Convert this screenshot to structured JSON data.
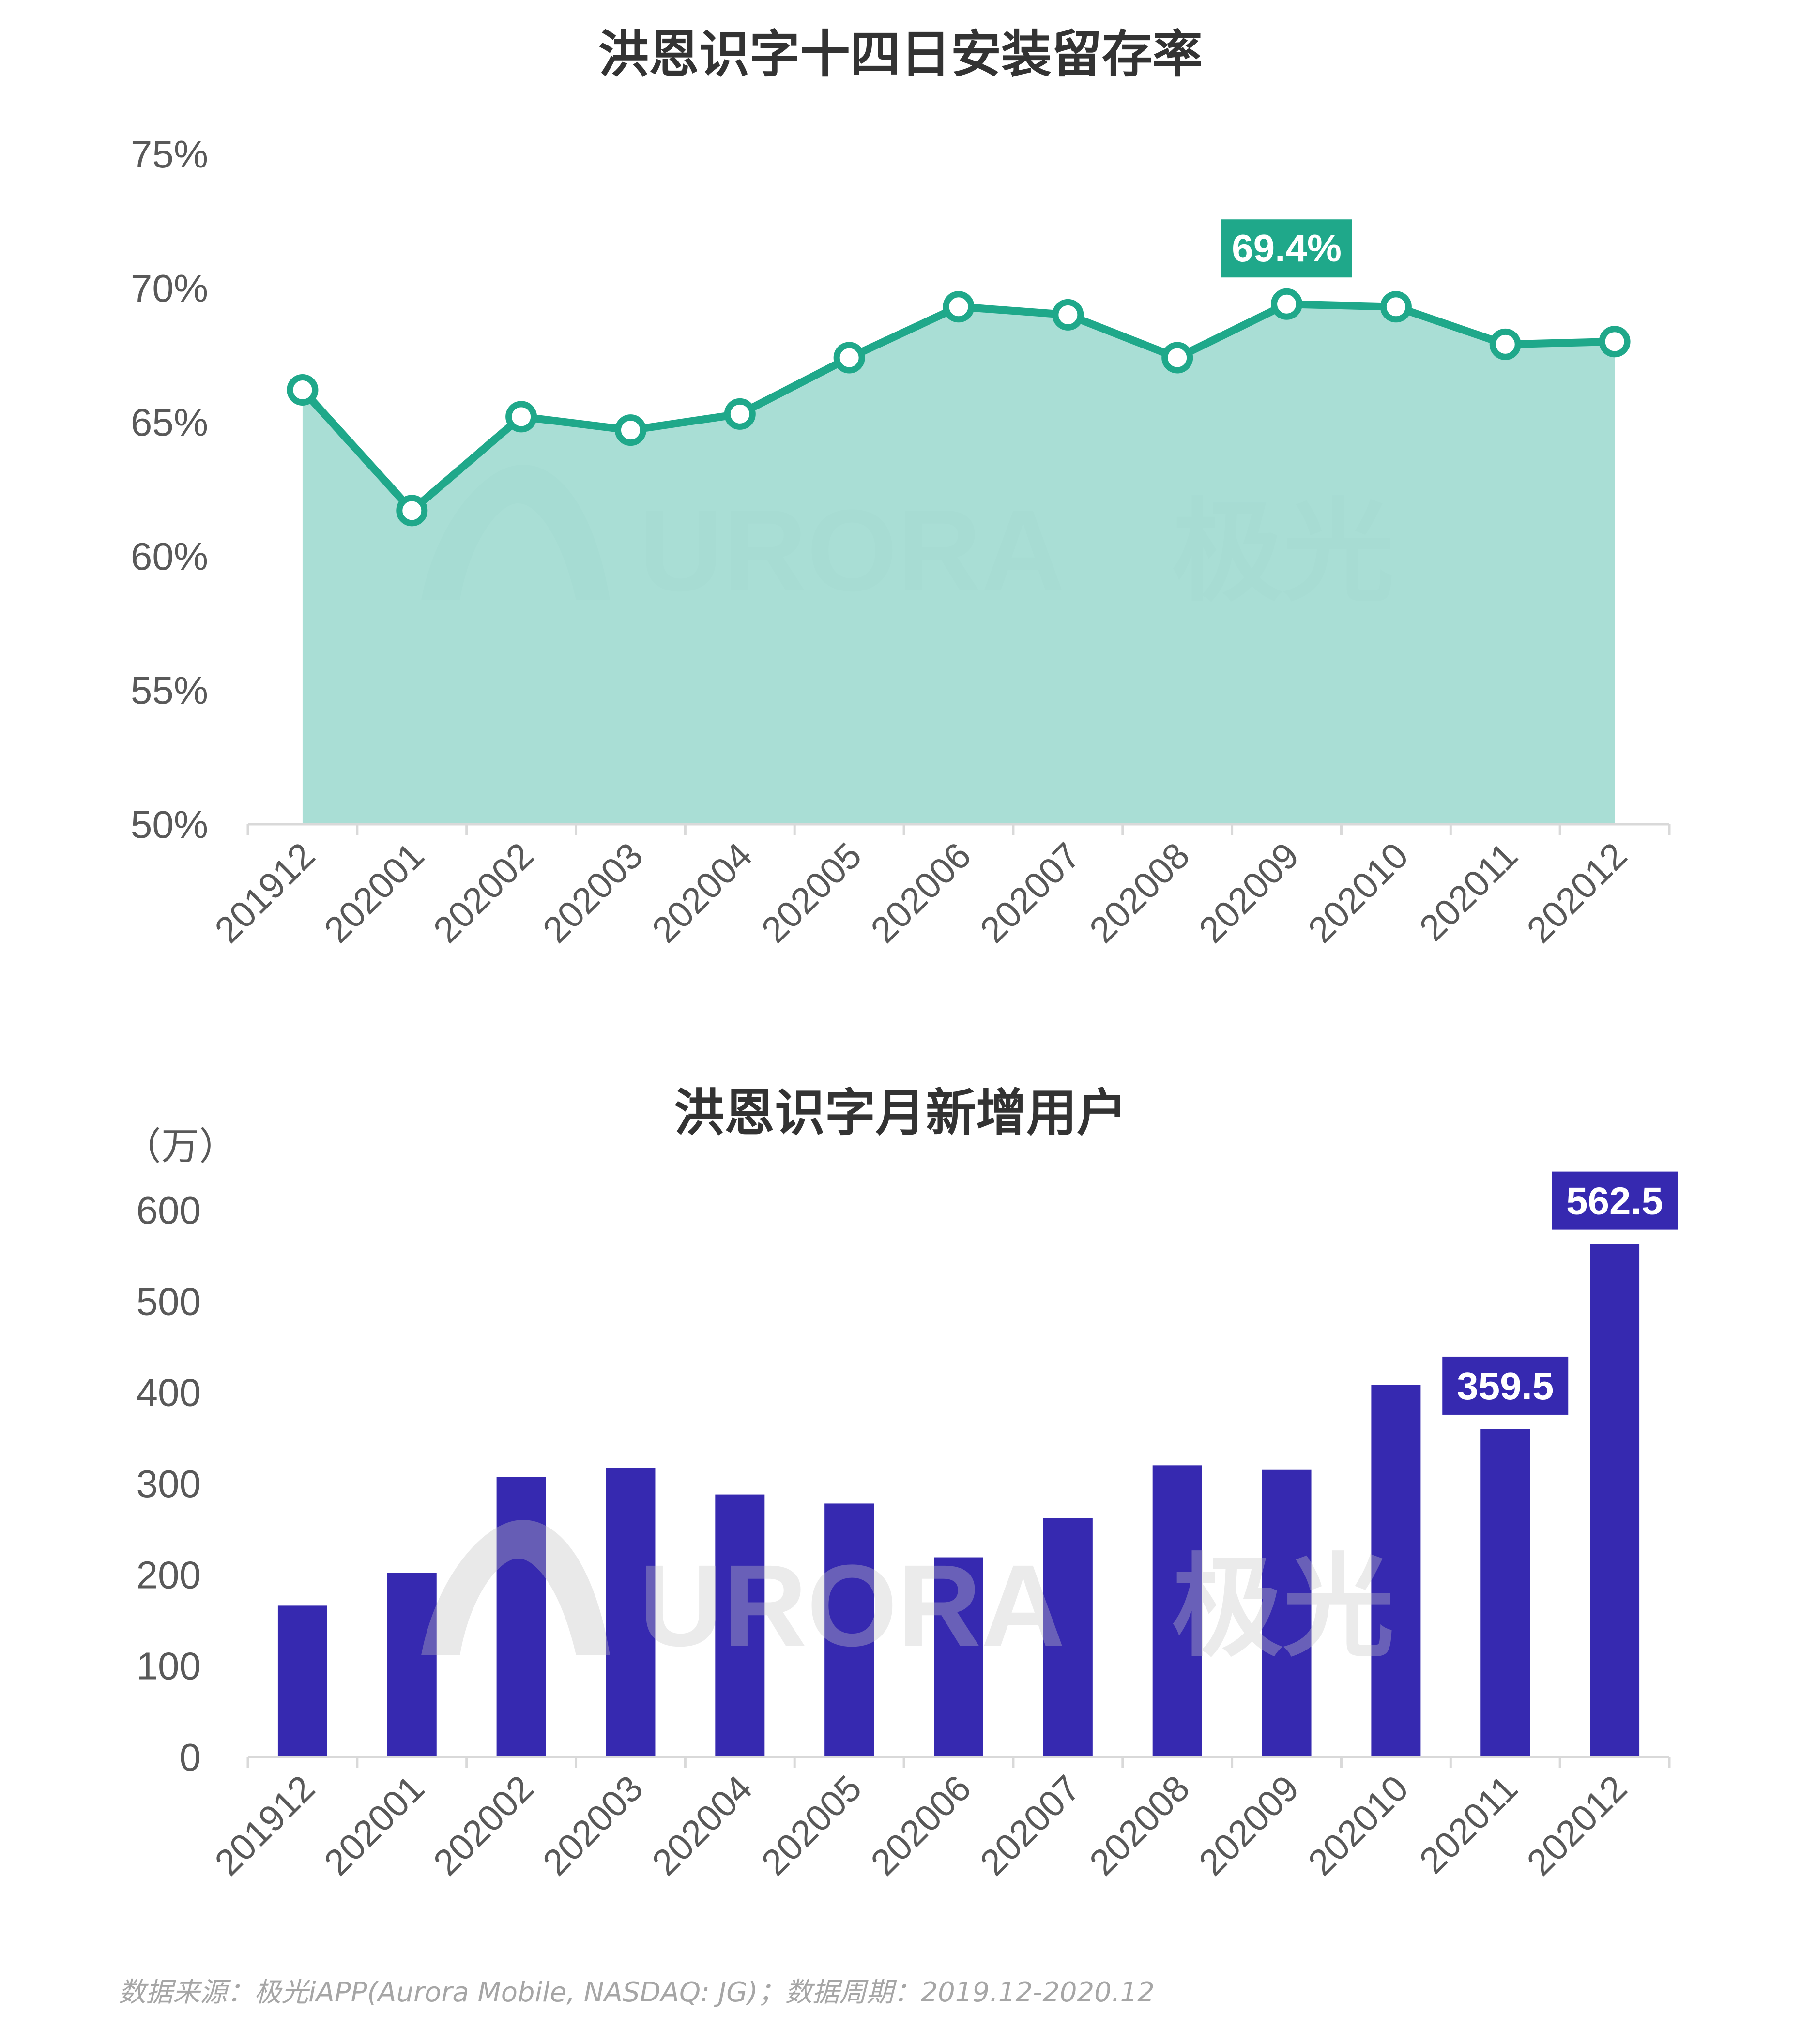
{
  "chart_data": [
    {
      "type": "area",
      "title": "洪恩识字十四日安装留存率",
      "categories": [
        "201912",
        "202001",
        "202002",
        "202003",
        "202004",
        "202005",
        "202006",
        "202007",
        "202008",
        "202009",
        "202010",
        "202011",
        "202012"
      ],
      "values": [
        66.2,
        61.7,
        65.2,
        64.7,
        65.3,
        67.4,
        69.3,
        69.0,
        67.4,
        69.4,
        69.3,
        67.9,
        68.0
      ],
      "ylim": [
        50,
        75
      ],
      "yticks": [
        "50%",
        "55%",
        "60%",
        "65%",
        "70%",
        "75%"
      ],
      "highlight": {
        "index": 9,
        "label": "69.4%"
      },
      "line_color": "#1fa88a",
      "fill_color": "#a3dbd2",
      "grid": false
    },
    {
      "type": "bar",
      "title": "洪恩识字月新增用户",
      "unit": "（万）",
      "categories": [
        "201912",
        "202001",
        "202002",
        "202003",
        "202004",
        "202005",
        "202006",
        "202007",
        "202008",
        "202009",
        "202010",
        "202011",
        "202012"
      ],
      "values": [
        166,
        202,
        307,
        317,
        288,
        278,
        219,
        262,
        320,
        315,
        408,
        359.5,
        562.5
      ],
      "ylim": [
        0,
        600
      ],
      "yticks": [
        "0",
        "100",
        "200",
        "300",
        "400",
        "500",
        "600"
      ],
      "highlights": [
        {
          "index": 11,
          "label": "359.5"
        },
        {
          "index": 12,
          "label": "562.5"
        }
      ],
      "bar_color": "#3629b0",
      "grid": false
    }
  ],
  "watermark": {
    "text": "URORA",
    "cn": "极光"
  },
  "source": "数据来源：极光iAPP(Aurora Mobile, NASDAQ: JG)；数据周期：2019.12-2020.12"
}
